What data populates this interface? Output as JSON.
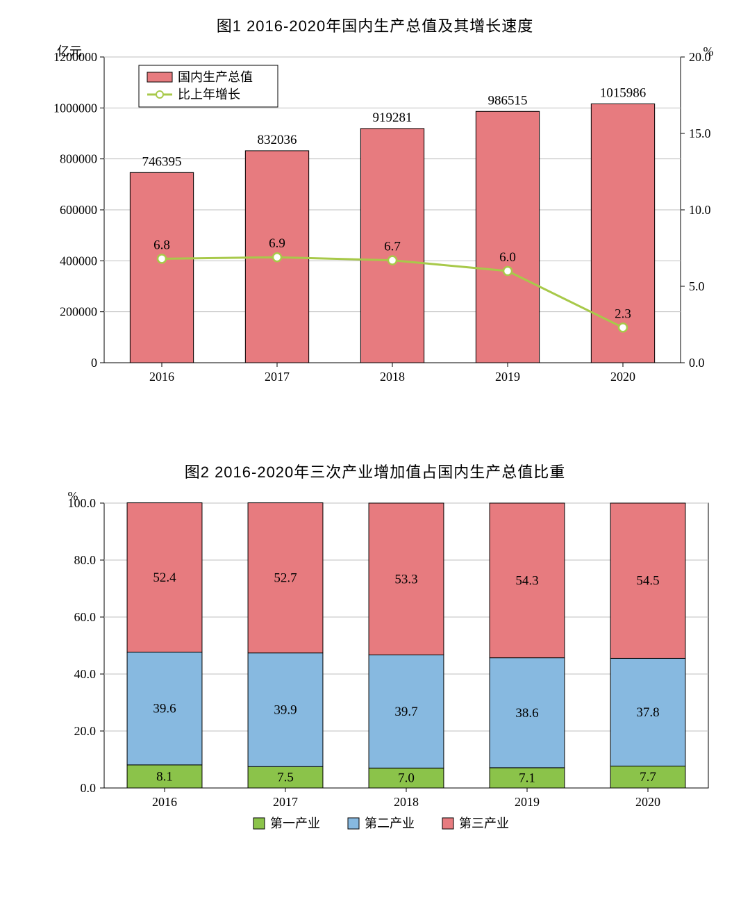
{
  "chart1": {
    "type": "bar+line",
    "title": "图1   2016-2020年国内生产总值及其增长速度",
    "categories": [
      "2016",
      "2017",
      "2018",
      "2019",
      "2020"
    ],
    "bar_series": {
      "name": "国内生产总值",
      "values": [
        746395,
        832036,
        919281,
        986515,
        1015986
      ],
      "color": "#e77b7f",
      "border_color": "#000000"
    },
    "line_series": {
      "name": "比上年增长",
      "values": [
        6.8,
        6.9,
        6.7,
        6.0,
        2.3
      ],
      "line_color": "#a8c94a",
      "marker_fill": "#ffffff",
      "marker_stroke": "#a8c94a",
      "marker_radius": 6
    },
    "y_left": {
      "label": "亿元",
      "min": 0,
      "max": 1200000,
      "step": 200000,
      "ticks": [
        "0",
        "200000",
        "400000",
        "600000",
        "800000",
        "1000000",
        "1200000"
      ]
    },
    "y_right": {
      "label": "%",
      "min": 0,
      "max": 20,
      "step": 5,
      "ticks": [
        "0.0",
        "5.0",
        "10.0",
        "15.0",
        "20.0"
      ]
    },
    "plot_bg": "#ffffff",
    "grid_color": "#bfbfbf",
    "border_color": "#000000",
    "font_size_title": 22,
    "font_size_tick": 18,
    "font_size_data": 19,
    "legend_box": {
      "border_color": "#000000",
      "bg": "#ffffff"
    }
  },
  "chart2": {
    "type": "stacked-bar",
    "title": "图2   2016-2020年三次产业增加值占国内生产总值比重",
    "categories": [
      "2016",
      "2017",
      "2018",
      "2019",
      "2020"
    ],
    "series": [
      {
        "name": "第一产业",
        "color": "#8bc34a",
        "values": [
          8.1,
          7.5,
          7.0,
          7.1,
          7.7
        ]
      },
      {
        "name": "第二产业",
        "color": "#87b9e0",
        "values": [
          39.6,
          39.9,
          39.7,
          38.6,
          37.8
        ]
      },
      {
        "name": "第三产业",
        "color": "#e77b7f",
        "values": [
          52.4,
          52.7,
          53.3,
          54.3,
          54.5
        ]
      }
    ],
    "y": {
      "label": "%",
      "min": 0,
      "max": 100,
      "step": 20,
      "ticks": [
        "0.0",
        "20.0",
        "40.0",
        "60.0",
        "80.0",
        "100.0"
      ]
    },
    "plot_bg": "#ffffff",
    "grid_color": "#bfbfbf",
    "border_color": "#000000",
    "font_size_title": 22,
    "font_size_tick": 18,
    "font_size_data": 19
  }
}
